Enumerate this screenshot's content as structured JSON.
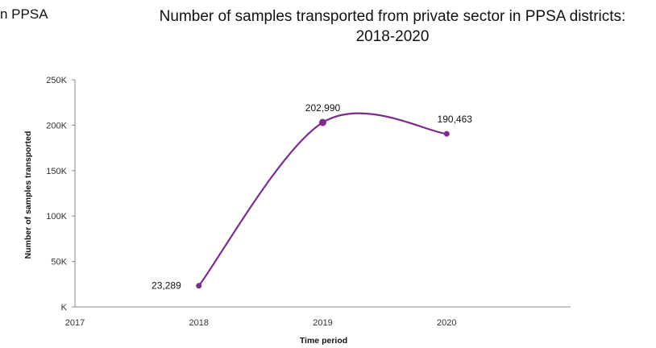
{
  "header": {
    "left_fragment": "n PPSA",
    "title_line1": "Number of samples transported from private sector in PPSA districts:",
    "title_line2": "2018-2020"
  },
  "chart_data": {
    "type": "line",
    "title": "Number of samples transported from private sector in PPSA districts: 2018-2020",
    "xlabel": "Time period",
    "ylabel": "Number of samples transported",
    "x_ticks": [
      "2017",
      "2018",
      "2019",
      "2020"
    ],
    "xlim": [
      2017,
      2021
    ],
    "y_ticks": [
      {
        "value": 0,
        "label": "K"
      },
      {
        "value": 50000,
        "label": "50K"
      },
      {
        "value": 100000,
        "label": "100K"
      },
      {
        "value": 150000,
        "label": "150K"
      },
      {
        "value": 200000,
        "label": "200K"
      },
      {
        "value": 250000,
        "label": "250K"
      }
    ],
    "ylim": [
      0,
      250000
    ],
    "series": [
      {
        "x": [
          2018,
          2019,
          2020
        ],
        "y": [
          23289,
          202990,
          190463
        ],
        "labels": [
          "23,289",
          "202,990",
          "190,463"
        ]
      }
    ],
    "colors": {
      "line": "#7B2D8E",
      "marker": "#7B2D8E",
      "axis": "#888888"
    },
    "smooth": true,
    "grid": false
  }
}
